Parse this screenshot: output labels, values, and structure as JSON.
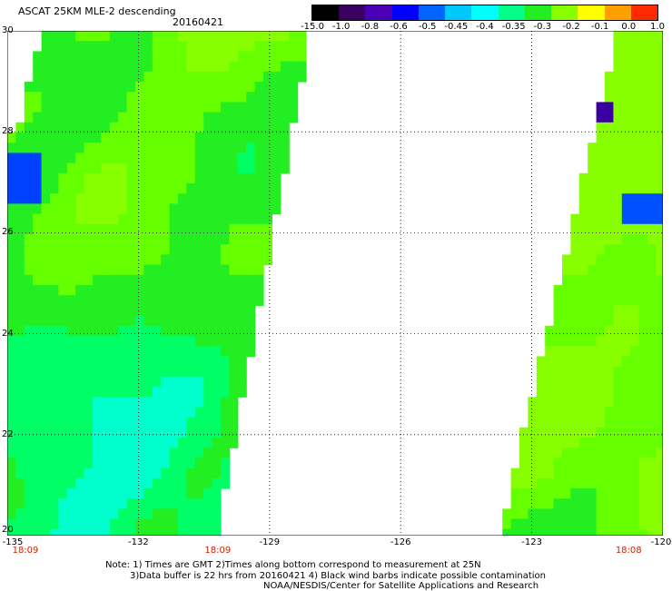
{
  "title": "ASCAT 25KM MLE-2 descending",
  "date": "20160421",
  "colorbar": {
    "labels": [
      "-15.0",
      "-1.0",
      "-0.8",
      "-0.6",
      "-0.5",
      "-0.45",
      "-0.4",
      "-0.35",
      "-0.3",
      "-0.2",
      "-0.1",
      "0.0",
      "1.0"
    ],
    "colors": [
      "#000000",
      "#3a0060",
      "#4b00b8",
      "#0000ff",
      "#0066ff",
      "#00c8ff",
      "#00ffff",
      "#00ff88",
      "#22ee22",
      "#88ff00",
      "#ffff00",
      "#ffa000",
      "#ff2a00"
    ]
  },
  "axes": {
    "lat_labels": [
      "30",
      "28",
      "26",
      "24",
      "22",
      "20"
    ],
    "lon_labels": [
      "-135",
      "-132",
      "-129",
      "-126",
      "-123",
      "-120"
    ],
    "lat_range": [
      20,
      30
    ],
    "lon_range": [
      -135,
      -120
    ]
  },
  "times": [
    {
      "label": "18:09",
      "lon": -135
    },
    {
      "label": "18:09",
      "lon": -130.6
    },
    {
      "label": "18:08",
      "lon": -121.2
    }
  ],
  "notes": {
    "line1": "Note: 1) Times are GMT 2)Times along bottom correspond to measurement at 25N",
    "line2": "3)Data buffer is 22 hrs from 20160421 4) Black wind barbs indicate possible contamination",
    "line3": "NOAA/NESDIS/Center for Satellite Applications and Research"
  }
}
